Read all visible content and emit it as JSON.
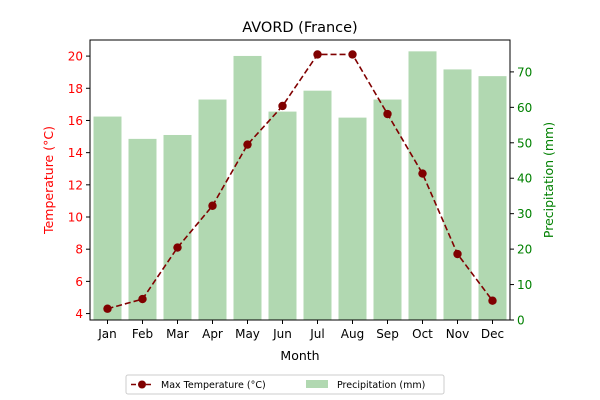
{
  "chart_data": {
    "type": "bar+line",
    "title": "AVORD (France)",
    "xlabel": "Month",
    "categories": [
      "Jan",
      "Feb",
      "Mar",
      "Apr",
      "May",
      "Jun",
      "Jul",
      "Aug",
      "Sep",
      "Oct",
      "Nov",
      "Dec"
    ],
    "left_axis": {
      "label": "Temperature (°C)",
      "ylim": [
        3.6,
        21.0
      ],
      "ticks": [
        4,
        6,
        8,
        10,
        12,
        14,
        16,
        18,
        20
      ],
      "color": "#ff0000"
    },
    "right_axis": {
      "label": "Precipitation (mm)",
      "ylim": [
        0,
        79
      ],
      "ticks": [
        0,
        10,
        20,
        30,
        40,
        50,
        60,
        70
      ],
      "color": "#008000"
    },
    "series": [
      {
        "name": "Max Temperature (°C)",
        "kind": "line",
        "axis": "left",
        "color": "#800000",
        "style": "dashed-with-circle-markers",
        "values": [
          4.3,
          4.9,
          8.1,
          10.7,
          14.5,
          16.9,
          20.1,
          20.1,
          16.4,
          12.7,
          7.7,
          4.8
        ]
      },
      {
        "name": "Precipitation (mm)",
        "kind": "bar",
        "axis": "right",
        "color": "#b1d8b1",
        "values": [
          57.4,
          51.1,
          52.2,
          62.2,
          74.5,
          58.8,
          64.7,
          57.1,
          62.2,
          75.8,
          70.7,
          68.8
        ]
      }
    ],
    "legend": {
      "placement": "bottom-center",
      "columns": 2
    },
    "grid": false
  }
}
